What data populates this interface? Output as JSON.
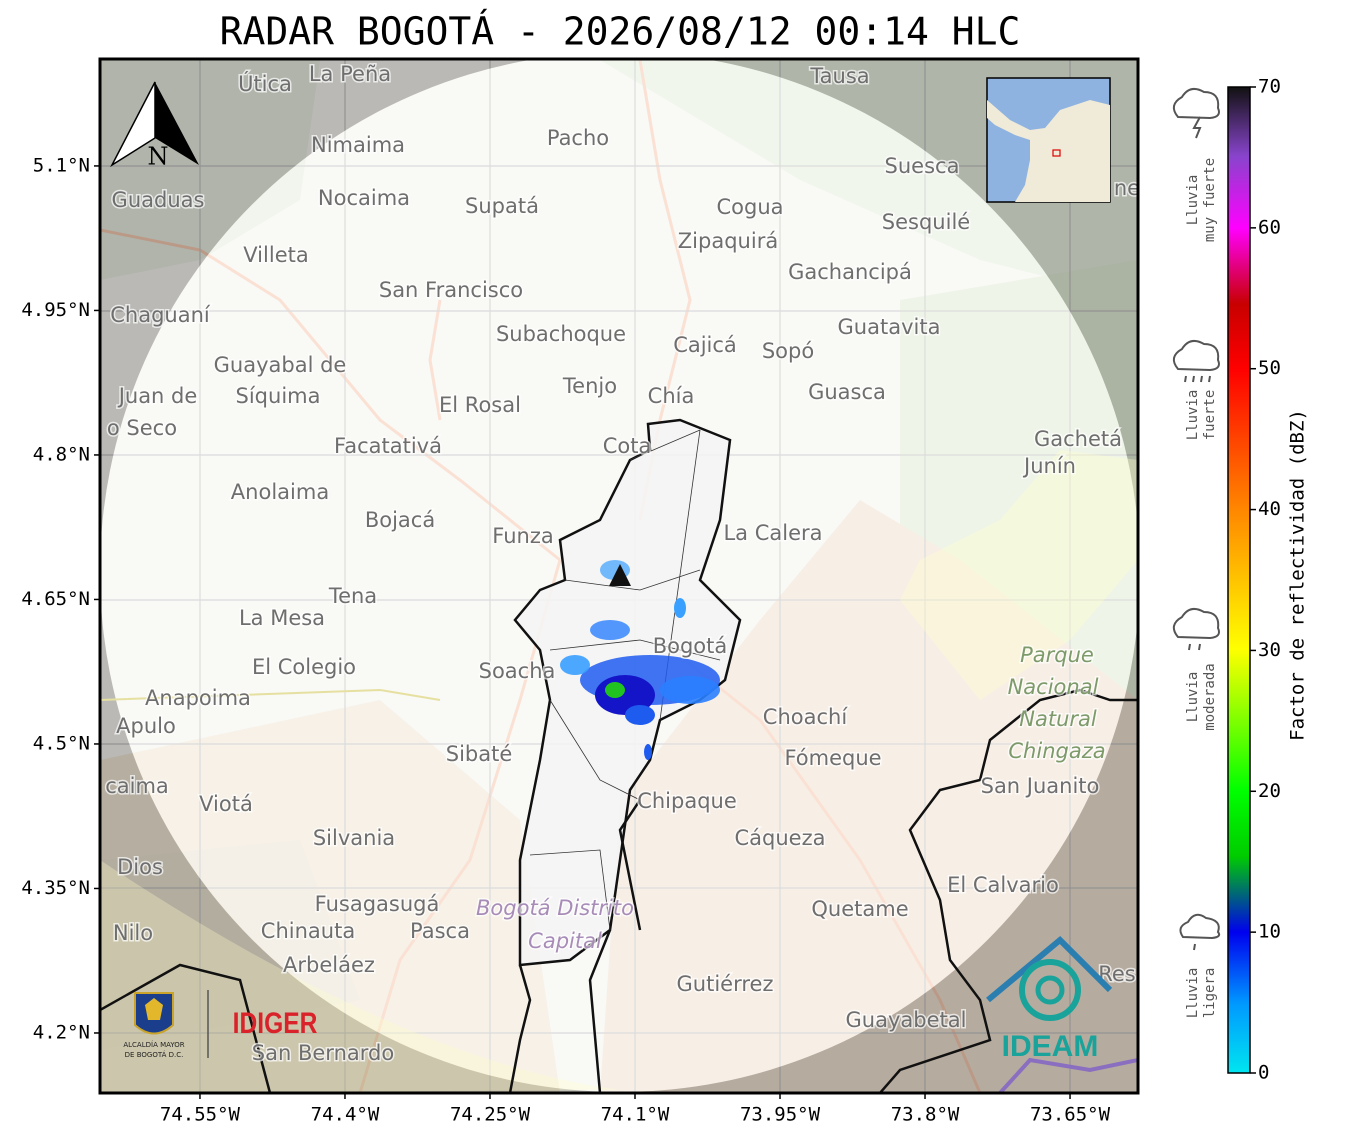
{
  "title": "RADAR BOGOTÁ - 2026/08/12 00:14 HLC",
  "map": {
    "xlim": [
      -74.6534,
      -73.5797
    ],
    "ylim": [
      4.1377,
      5.211
    ],
    "xticks": [
      {
        "value": -74.55,
        "label": "74.55°W"
      },
      {
        "value": -74.4,
        "label": "74.4°W"
      },
      {
        "value": -74.25,
        "label": "74.25°W"
      },
      {
        "value": -74.1,
        "label": "74.1°W"
      },
      {
        "value": -73.95,
        "label": "73.95°W"
      },
      {
        "value": -73.8,
        "label": "73.8°W"
      },
      {
        "value": -73.65,
        "label": "73.65°W"
      }
    ],
    "yticks": [
      {
        "value": 5.1,
        "label": "5.1°N"
      },
      {
        "value": 4.95,
        "label": "4.95°N"
      },
      {
        "value": 4.8,
        "label": "4.8°N"
      },
      {
        "value": 4.65,
        "label": "4.65°N"
      },
      {
        "value": 4.5,
        "label": "4.5°N"
      },
      {
        "value": 4.35,
        "label": "4.35°N"
      },
      {
        "value": 4.2,
        "label": "4.2°N"
      }
    ],
    "north": "N",
    "places": [
      "Útica",
      "La Peña",
      "Tausa",
      "Pacho",
      "Nimaima",
      "Suesca",
      "Guaduas",
      "Nocaima",
      "Supatá",
      "Cogua",
      "Sesquilé",
      "Zipaquirá",
      "Villeta",
      "Gachancipá",
      "San Francisco",
      "Chaguaní",
      "Guatavita",
      "Subachoque",
      "Cajicá",
      "Sopó",
      "Guayabal de",
      "Síquima",
      "Juan de",
      "o Seco",
      "Tenjo",
      "Chía",
      "El Rosal",
      "Guasca",
      "Facatativá",
      "Cota",
      "Gachetá",
      "Junín",
      "Anolaima",
      "Bojacá",
      "Funza",
      "La Calera",
      "Tena",
      "La Mesa",
      "Bogotá",
      "Parque",
      "Nacional",
      "Natural",
      "Chingaza",
      "El Colegio",
      "Soacha",
      "Anapoima",
      "Apulo",
      "Choachí",
      "Sibaté",
      "Fómeque",
      "San Juanito",
      "caima",
      "Viotá",
      "Chipaque",
      "Silvania",
      "Cáqueza",
      "Dios",
      "El Calvario",
      "Fusagasugá",
      "Bogotá Distrito",
      "Capital",
      "Quetame",
      "Nilo",
      "Chinauta",
      "Pasca",
      "Arbeláez",
      "Gutiérrez",
      "Guayabetal",
      "San Bernardo",
      "ne",
      "Res"
    ]
  },
  "colorbar": {
    "label": "Factor de reflectividad (dBZ)",
    "lim": [
      0,
      70
    ],
    "ticks": [
      0,
      10,
      20,
      30,
      40,
      50,
      60,
      70
    ]
  },
  "rain_levels": [
    [
      "Lluvia",
      "muy fuerte"
    ],
    [
      "Lluvia",
      "fuerte"
    ],
    [
      "Lluvia",
      "moderada"
    ],
    [
      "Lluvia",
      "ligera"
    ]
  ],
  "logos": {
    "alcaldia": [
      "ALCALDÍA MAYOR",
      "DE BOGOTÁ D.C."
    ],
    "idiger": "IDIGER",
    "ideam": "IDEAM"
  }
}
